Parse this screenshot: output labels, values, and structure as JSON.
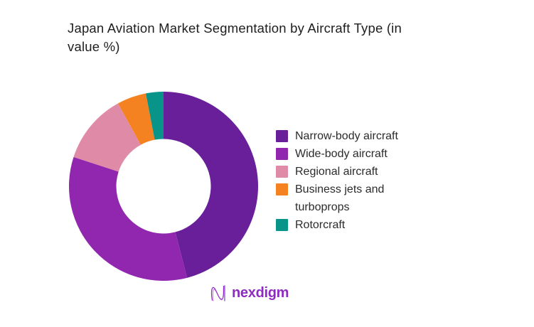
{
  "header": {
    "line1": "Japan Aviation Market Segmentation by Aircraft Type (in",
    "line2": "value %)"
  },
  "chart_data": {
    "type": "pie",
    "subtype": "donut",
    "title": "Japan Aviation Market Segmentation by Aircraft Type (in value %)",
    "categories": [
      "Narrow-body aircraft",
      "Wide-body aircraft",
      "Regional aircraft",
      "Business jets and turboprops",
      "Rotorcraft"
    ],
    "values": [
      46,
      34,
      12,
      5,
      3
    ],
    "unit": "percent of market value",
    "colors": [
      "#6A1F9A",
      "#9227AF",
      "#DF8BA7",
      "#F58220",
      "#089488"
    ],
    "start_angle_deg": 0,
    "direction": "clockwise",
    "donut_hole_ratio": 0.5,
    "legend_position": "right",
    "background": "#FFFFFF"
  },
  "legend": {
    "items": [
      {
        "label": "Narrow-body aircraft",
        "color": "#6A1F9A"
      },
      {
        "label": "Wide-body aircraft",
        "color": "#9227AF"
      },
      {
        "label": "Regional aircraft",
        "color": "#DF8BA7"
      },
      {
        "label": "Business jets and turboprops",
        "color": "#F58220"
      },
      {
        "label": "Rotorcraft",
        "color": "#089488"
      }
    ]
  },
  "branding": {
    "logo_text": "nexdigm",
    "logo_color": "#8E2BC0",
    "logo_icon": "nexdigm-n-squiggle-icon"
  }
}
